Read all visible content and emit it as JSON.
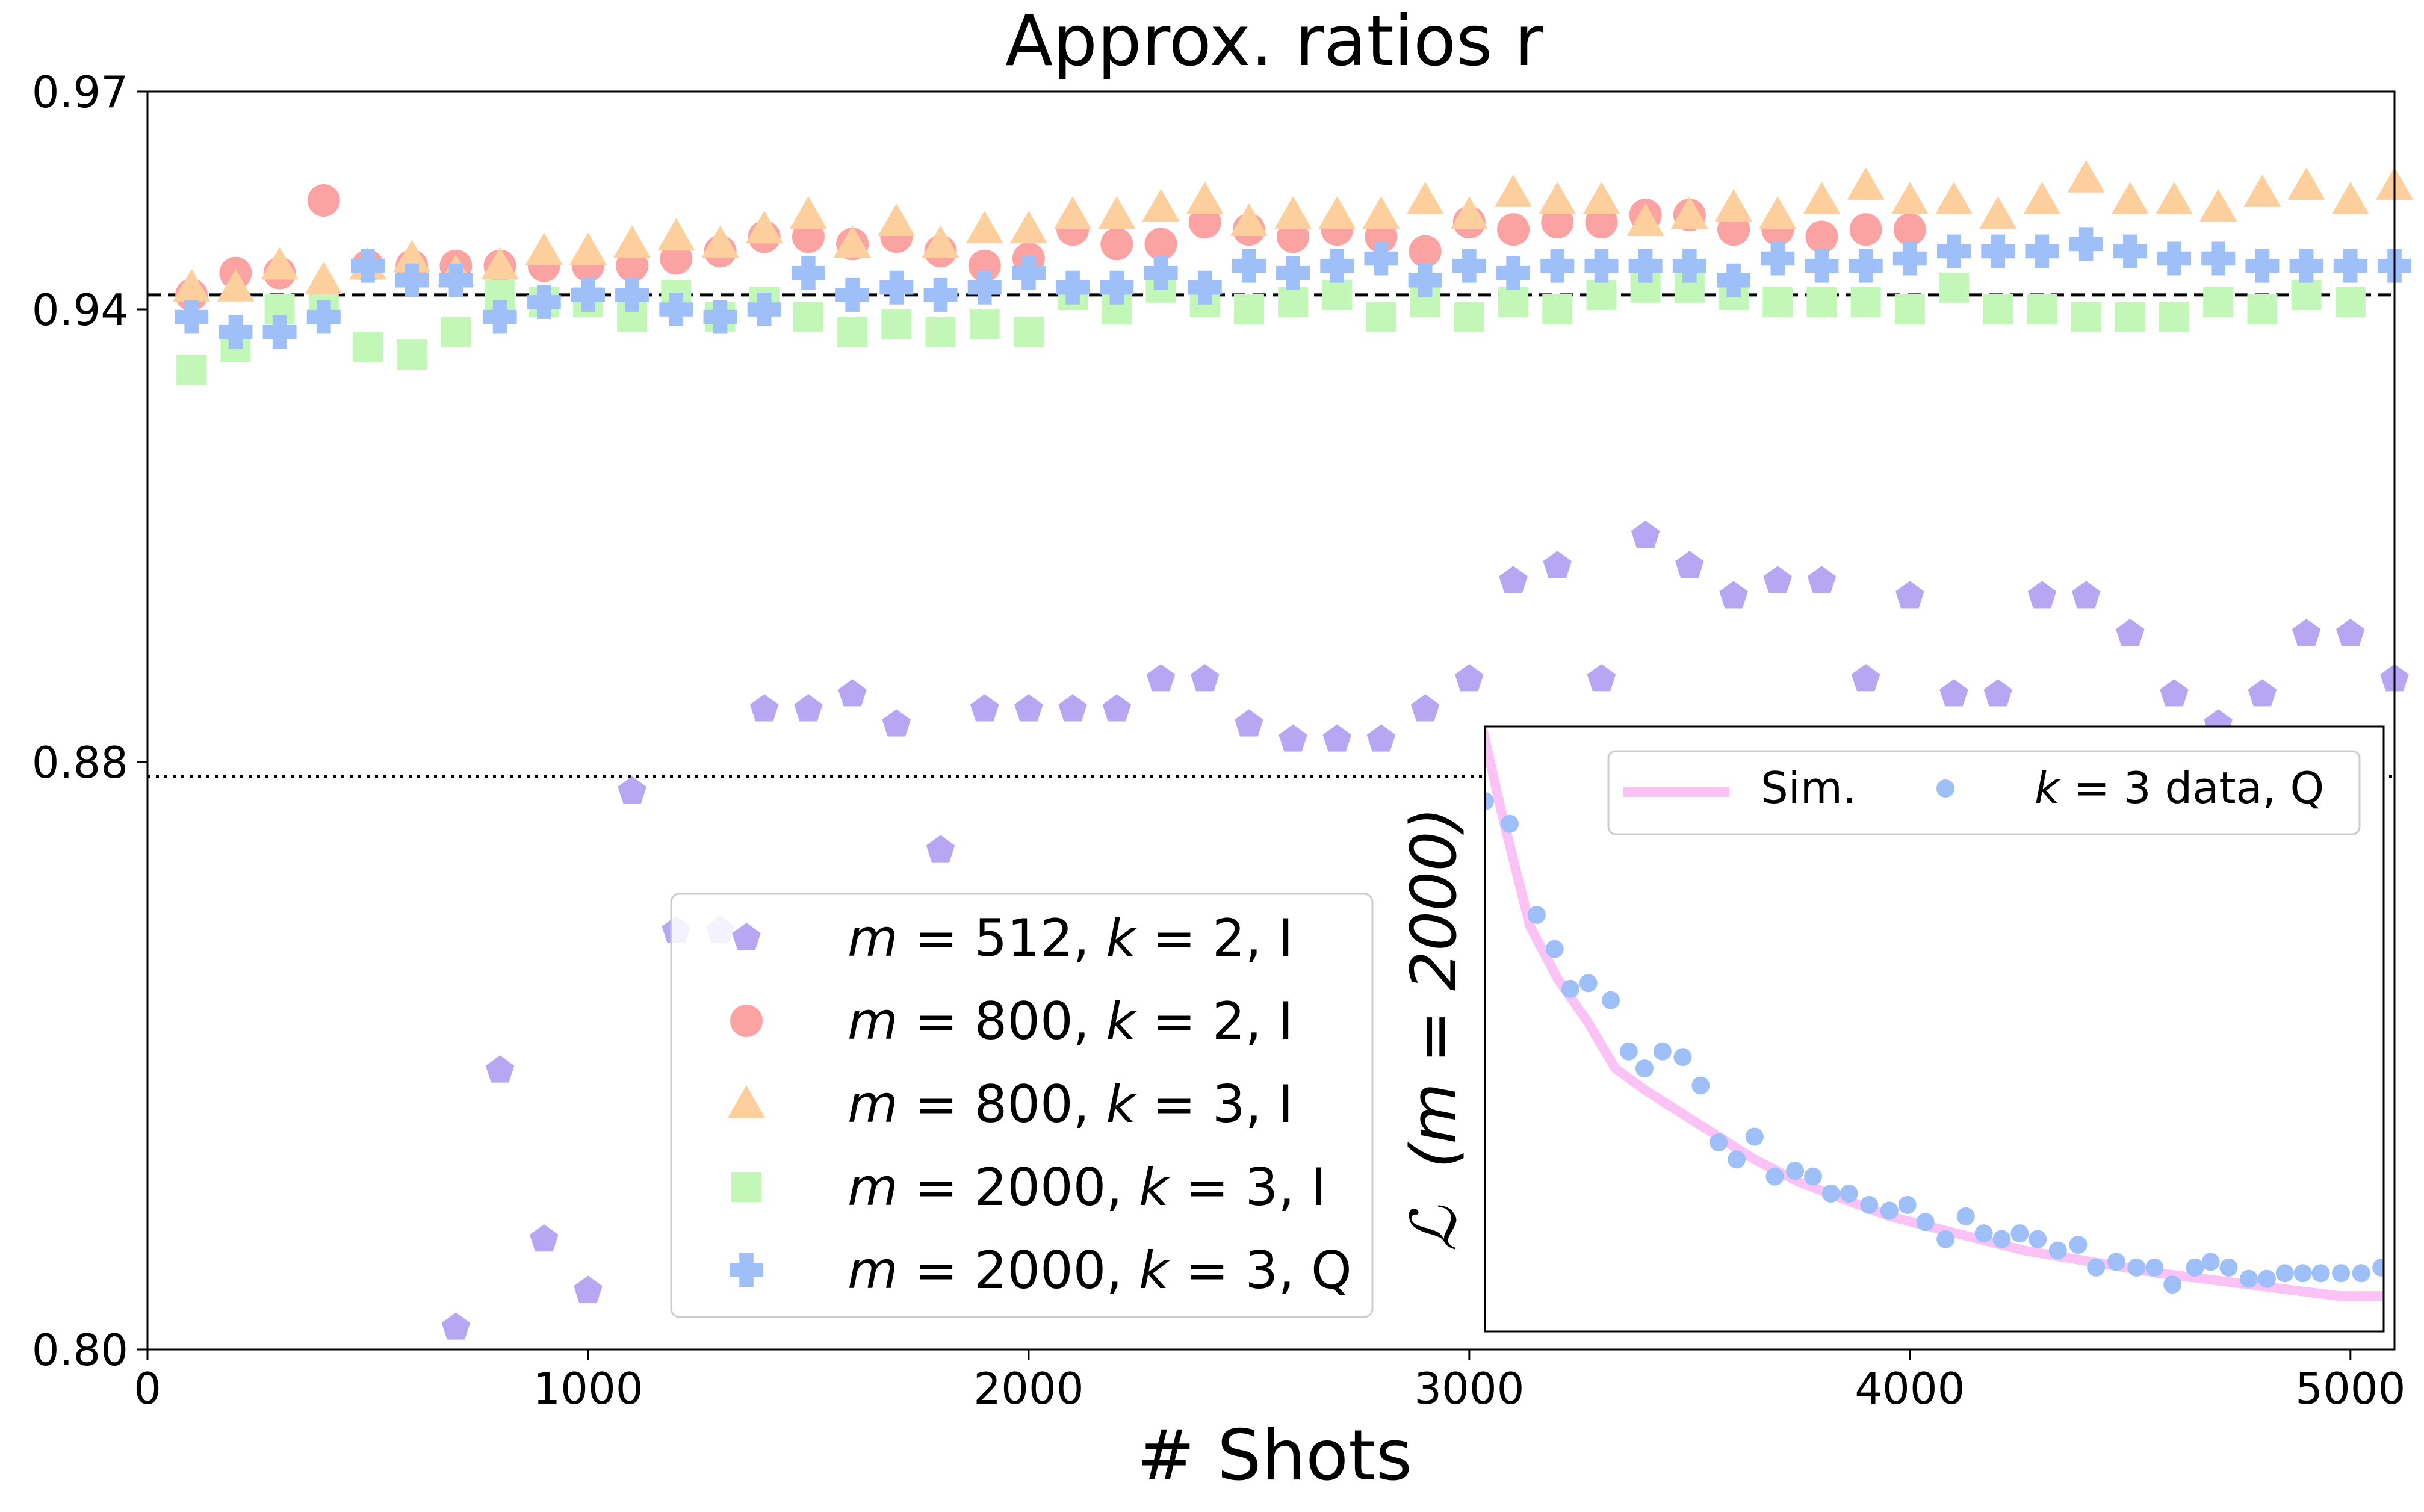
{
  "chart_data": {
    "type": "scatter",
    "title": "Approx. ratios r",
    "xlabel": "# Shots",
    "ylabel": "",
    "xlim": [
      0,
      5100
    ],
    "ylim": [
      0.8,
      0.97
    ],
    "x_ticks": [
      {
        "value": 0,
        "label": "0"
      },
      {
        "value": 1000,
        "label": "1000"
      },
      {
        "value": 2000,
        "label": "2000"
      },
      {
        "value": 3000,
        "label": "3000"
      },
      {
        "value": 4000,
        "label": "4000"
      },
      {
        "value": 5000,
        "label": "5000"
      }
    ],
    "y_ticks": [
      {
        "value": 0.8,
        "label": "0.80"
      },
      {
        "value": 0.88,
        "label": "0.88"
      },
      {
        "value": 0.94,
        "label": "0.94"
      },
      {
        "value": 0.97,
        "label": "0.97"
      }
    ],
    "y_axis_scale": "nonlinear (ticks 0.80, 0.88, 0.94, 0.97 not evenly spaced)",
    "reference_lines": [
      {
        "y": 0.942,
        "style": "dashed",
        "color": "#000000"
      },
      {
        "y": 0.878,
        "style": "dotted",
        "color": "#000000"
      }
    ],
    "grid": false,
    "legend_placement": "lower-center",
    "series": [
      {
        "name": "m=512, k=2, I",
        "legend": {
          "pre": "m",
          "num1": "512",
          "mid": "k",
          "num2": "2",
          "tag": "I"
        },
        "marker": "pentagon",
        "color": "#b7a7f3",
        "x": [
          700,
          800,
          900,
          1000,
          1100,
          1200,
          1300,
          1400,
          1500,
          1600,
          1700,
          1800,
          1900,
          2000,
          2100,
          2200,
          2300,
          2400,
          2500,
          2600,
          2700,
          2800,
          2900,
          3000,
          3100,
          3200,
          3300,
          3400,
          3500,
          3600,
          3700,
          3800,
          3900,
          4000,
          4100,
          4200,
          4300,
          4400,
          4500,
          4600,
          4700,
          4800,
          4900,
          5000,
          5100
        ],
        "y": [
          0.803,
          0.838,
          0.815,
          0.808,
          0.876,
          0.857,
          0.857,
          0.887,
          0.887,
          0.889,
          0.885,
          0.868,
          0.887,
          0.887,
          0.887,
          0.887,
          0.891,
          0.891,
          0.885,
          0.883,
          0.883,
          0.883,
          0.887,
          0.891,
          0.904,
          0.906,
          0.891,
          0.91,
          0.906,
          0.902,
          0.904,
          0.904,
          0.891,
          0.902,
          0.889,
          0.889,
          0.902,
          0.902,
          0.897,
          0.889,
          0.885,
          0.889,
          0.897,
          0.897,
          0.891
        ]
      },
      {
        "name": "m=800, k=2, I",
        "legend": {
          "pre": "m",
          "num1": "800",
          "mid": "k",
          "num2": "2",
          "tag": "I"
        },
        "marker": "circle",
        "color": "#fba3a3",
        "x": [
          100,
          200,
          300,
          400,
          500,
          600,
          700,
          800,
          900,
          1000,
          1100,
          1200,
          1300,
          1400,
          1500,
          1600,
          1700,
          1800,
          1900,
          2000,
          2100,
          2200,
          2300,
          2400,
          2500,
          2600,
          2700,
          2800,
          2900,
          3000,
          3100,
          3200,
          3300,
          3400,
          3500,
          3600,
          3700,
          3800,
          3900,
          4000
        ],
        "y": [
          0.942,
          0.945,
          0.945,
          0.955,
          0.946,
          0.946,
          0.946,
          0.946,
          0.946,
          0.946,
          0.946,
          0.947,
          0.948,
          0.95,
          0.95,
          0.949,
          0.95,
          0.948,
          0.946,
          0.947,
          0.951,
          0.949,
          0.949,
          0.952,
          0.951,
          0.95,
          0.951,
          0.95,
          0.948,
          0.952,
          0.951,
          0.952,
          0.952,
          0.953,
          0.953,
          0.951,
          0.951,
          0.95,
          0.951,
          0.951
        ]
      },
      {
        "name": "m=800, k=3, I",
        "legend": {
          "pre": "m",
          "num1": "800",
          "mid": "k",
          "num2": "3",
          "tag": "I"
        },
        "marker": "triangle",
        "color": "#fdcf9d",
        "x": [
          100,
          200,
          300,
          400,
          500,
          600,
          700,
          800,
          900,
          1000,
          1100,
          1200,
          1300,
          1400,
          1500,
          1600,
          1700,
          1800,
          1900,
          2000,
          2100,
          2200,
          2300,
          2400,
          2500,
          2600,
          2700,
          2800,
          2900,
          3000,
          3100,
          3200,
          3300,
          3400,
          3500,
          3600,
          3700,
          3800,
          3900,
          4000,
          4100,
          4200,
          4300,
          4400,
          4500,
          4600,
          4700,
          4800,
          4900,
          5000,
          5100
        ],
        "y": [
          0.943,
          0.943,
          0.946,
          0.944,
          0.946,
          0.947,
          0.945,
          0.946,
          0.948,
          0.948,
          0.949,
          0.95,
          0.949,
          0.951,
          0.953,
          0.949,
          0.952,
          0.949,
          0.951,
          0.951,
          0.953,
          0.953,
          0.954,
          0.955,
          0.952,
          0.953,
          0.953,
          0.953,
          0.955,
          0.953,
          0.956,
          0.955,
          0.955,
          0.952,
          0.953,
          0.954,
          0.953,
          0.955,
          0.957,
          0.955,
          0.955,
          0.953,
          0.955,
          0.958,
          0.955,
          0.955,
          0.954,
          0.956,
          0.957,
          0.955,
          0.957
        ]
      },
      {
        "name": "m=2000, k=3, I",
        "legend": {
          "pre": "m",
          "num1": "2000",
          "mid": "k",
          "num2": "3",
          "tag": "I"
        },
        "marker": "square",
        "color": "#c2f7b8",
        "x": [
          100,
          200,
          300,
          400,
          500,
          600,
          700,
          800,
          900,
          1000,
          1100,
          1200,
          1300,
          1400,
          1500,
          1600,
          1700,
          1800,
          1900,
          2000,
          2100,
          2200,
          2300,
          2400,
          2500,
          2600,
          2700,
          2800,
          2900,
          3000,
          3100,
          3200,
          3300,
          3400,
          3500,
          3600,
          3700,
          3800,
          3900,
          4000,
          4100,
          4200,
          4300,
          4400,
          4500,
          4600,
          4700,
          4800,
          4900,
          5000
        ],
        "y": [
          0.932,
          0.935,
          0.94,
          0.94,
          0.935,
          0.934,
          0.937,
          0.942,
          0.941,
          0.941,
          0.939,
          0.942,
          0.939,
          0.941,
          0.939,
          0.937,
          0.938,
          0.937,
          0.938,
          0.937,
          0.942,
          0.94,
          0.943,
          0.941,
          0.94,
          0.941,
          0.942,
          0.939,
          0.941,
          0.939,
          0.941,
          0.94,
          0.942,
          0.943,
          0.943,
          0.942,
          0.941,
          0.941,
          0.941,
          0.94,
          0.943,
          0.94,
          0.94,
          0.939,
          0.939,
          0.939,
          0.941,
          0.94,
          0.942,
          0.941
        ]
      },
      {
        "name": "m=2000, k=3, Q",
        "legend": {
          "pre": "m",
          "num1": "2000",
          "mid": "k",
          "num2": "3",
          "tag": "Q"
        },
        "marker": "plus",
        "color": "#9fbff8",
        "x": [
          100,
          200,
          300,
          400,
          500,
          600,
          700,
          800,
          900,
          1000,
          1100,
          1200,
          1300,
          1400,
          1500,
          1600,
          1700,
          1800,
          1900,
          2000,
          2100,
          2200,
          2300,
          2400,
          2500,
          2600,
          2700,
          2800,
          2900,
          3000,
          3100,
          3200,
          3300,
          3400,
          3500,
          3600,
          3700,
          3800,
          3900,
          4000,
          4100,
          4200,
          4300,
          4400,
          4500,
          4600,
          4700,
          4800,
          4900,
          5000,
          5100
        ],
        "y": [
          0.939,
          0.937,
          0.937,
          0.939,
          0.946,
          0.944,
          0.944,
          0.939,
          0.941,
          0.942,
          0.942,
          0.94,
          0.939,
          0.94,
          0.945,
          0.942,
          0.943,
          0.942,
          0.943,
          0.945,
          0.943,
          0.943,
          0.945,
          0.943,
          0.946,
          0.945,
          0.946,
          0.947,
          0.944,
          0.946,
          0.945,
          0.946,
          0.946,
          0.946,
          0.946,
          0.944,
          0.947,
          0.946,
          0.946,
          0.947,
          0.948,
          0.948,
          0.948,
          0.949,
          0.948,
          0.947,
          0.947,
          0.946,
          0.946,
          0.946,
          0.946
        ]
      }
    ],
    "inset": {
      "ylabel": "(m = 2000)",
      "ylabel_symbol": "ℒ",
      "sim_label": "Sim.",
      "data_label": {
        "var": "k",
        "rest": " = 3 data, Q"
      },
      "sim_color": "#fac2f5",
      "data_color": "#9fbff8",
      "xlim": [
        3100,
        5100
      ],
      "ylim": [
        0,
        1
      ],
      "data_x": [
        3100,
        3155,
        3215,
        3255,
        3290,
        3330,
        3380,
        3420,
        3455,
        3495,
        3540,
        3580,
        3620,
        3660,
        3700,
        3745,
        3790,
        3830,
        3870,
        3910,
        3955,
        4000,
        4040,
        4080,
        4125,
        4170,
        4210,
        4250,
        4290,
        4330,
        4375,
        4420,
        4460,
        4505,
        4550,
        4590,
        4630,
        4680,
        4715,
        4755,
        4800,
        4840,
        4880,
        4920,
        4960,
        5005,
        5050,
        5095
      ],
      "data_y": [
        0.89,
        0.85,
        0.69,
        0.63,
        0.56,
        0.57,
        0.54,
        0.45,
        0.42,
        0.45,
        0.44,
        0.39,
        0.29,
        0.26,
        0.3,
        0.23,
        0.24,
        0.23,
        0.2,
        0.2,
        0.18,
        0.17,
        0.18,
        0.15,
        0.12,
        0.16,
        0.13,
        0.12,
        0.13,
        0.12,
        0.1,
        0.11,
        0.07,
        0.08,
        0.07,
        0.07,
        0.04,
        0.07,
        0.08,
        0.07,
        0.05,
        0.05,
        0.06,
        0.06,
        0.06,
        0.06,
        0.06,
        0.07
      ],
      "sim_x": [
        3085,
        3140,
        3200,
        3260,
        3330,
        3390,
        3460,
        3540,
        3620,
        3700,
        3800,
        3900,
        4000,
        4150,
        4300,
        4450,
        4600,
        4800,
        5000,
        5100
      ],
      "sim_y": [
        1.05,
        0.86,
        0.67,
        0.58,
        0.5,
        0.42,
        0.38,
        0.34,
        0.3,
        0.26,
        0.22,
        0.19,
        0.16,
        0.13,
        0.1,
        0.08,
        0.06,
        0.04,
        0.02,
        0.02
      ]
    }
  }
}
